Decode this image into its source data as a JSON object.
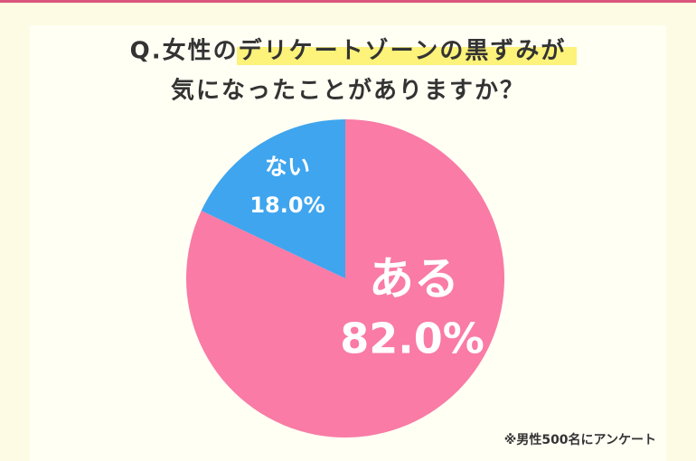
{
  "chart_data": {
    "type": "pie",
    "title": [
      "Q.女性のデリケートゾーンの黒ずみが",
      "気になったことがありますか？"
    ],
    "categories": [
      "ある",
      "ない"
    ],
    "values": [
      82.0,
      18.0
    ],
    "value_labels": [
      "82.0%",
      "18.0%"
    ],
    "colors": [
      "#f97ba6",
      "#3fa5ee"
    ],
    "note": "※男性500名にアンケート"
  }
}
